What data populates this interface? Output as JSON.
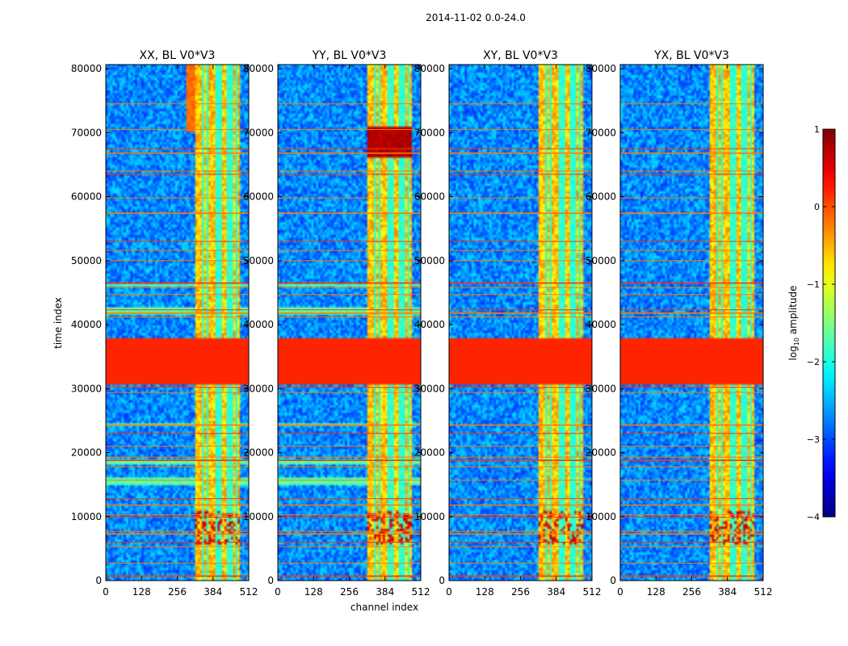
{
  "figure": {
    "suptitle": "2014-11-02 0.0-24.0",
    "xlabel": "channel index",
    "ylabel": "time index",
    "colorbar_label_prefix": "log",
    "colorbar_label_sub": "10",
    "colorbar_label_suffix": " amplitude"
  },
  "chart_data": {
    "type": "heatmap",
    "xlim": [
      0,
      512
    ],
    "ylim": [
      0,
      80640
    ],
    "x_ticks": [
      0,
      128,
      256,
      384,
      512
    ],
    "y_ticks": [
      0,
      10000,
      20000,
      30000,
      40000,
      50000,
      60000,
      70000,
      80000
    ],
    "colorbar": {
      "range": [
        -4,
        1
      ],
      "ticks": [
        1,
        0,
        -1,
        -2,
        -3,
        -4
      ],
      "tick_labels": [
        "1",
        "0",
        "−1",
        "−2",
        "−3",
        "−4"
      ],
      "colormap": "jet"
    },
    "panels": [
      {
        "title": "XX, BL V0*V3",
        "x_tick_labels": [
          "0",
          "128",
          "256",
          "384",
          "512"
        ],
        "y_tick_labels": [
          "0",
          "10000",
          "20000",
          "30000",
          "40000",
          "50000",
          "60000",
          "70000",
          "80000"
        ]
      },
      {
        "title": "YY, BL V0*V3",
        "x_tick_labels": [
          "0",
          "128",
          "256",
          "384",
          "512"
        ],
        "y_tick_labels": [
          "0",
          "10000",
          "20000",
          "30000",
          "40000",
          "50000",
          "60000",
          "70000",
          "80000"
        ]
      },
      {
        "title": "XY, BL V0*V3",
        "x_tick_labels": [
          "0",
          "128",
          "256",
          "384",
          "512"
        ],
        "y_tick_labels": [
          "0",
          "10000",
          "20000",
          "30000",
          "40000",
          "50000",
          "60000",
          "70000",
          "80000"
        ]
      },
      {
        "title": "YX, BL V0*V3",
        "x_tick_labels": [
          "0",
          "128",
          "256",
          "384",
          "512"
        ],
        "y_tick_labels": [
          "0",
          "10000",
          "20000",
          "30000",
          "40000",
          "50000",
          "60000",
          "70000",
          "80000"
        ]
      }
    ],
    "features": {
      "background_level": -2.7,
      "bright_channel_band": [
        320,
        480
      ],
      "bright_level": -0.6,
      "dark_channel_gaps": [
        350,
        365,
        400,
        415,
        440,
        455,
        470
      ],
      "flagged_time_range": [
        30800,
        38000
      ],
      "flagged_level": 0.2,
      "rfi_time_lines": [
        700,
        2700,
        5300,
        6000,
        7300,
        7700,
        9900,
        10300,
        11800,
        12800,
        15700,
        17800,
        18800,
        19300,
        21000,
        23000,
        24300,
        29400,
        30200,
        41200,
        41800,
        42300,
        44700,
        45800,
        46500,
        50000,
        51600,
        53000,
        57400,
        59800,
        63500,
        64000,
        66800,
        67500,
        70500,
        74500
      ],
      "grey_bands": [
        [
          15000,
          16200
        ],
        [
          18200,
          18900
        ],
        [
          24000,
          24700
        ],
        [
          41600,
          42700
        ],
        [
          45800,
          46300
        ]
      ]
    }
  }
}
